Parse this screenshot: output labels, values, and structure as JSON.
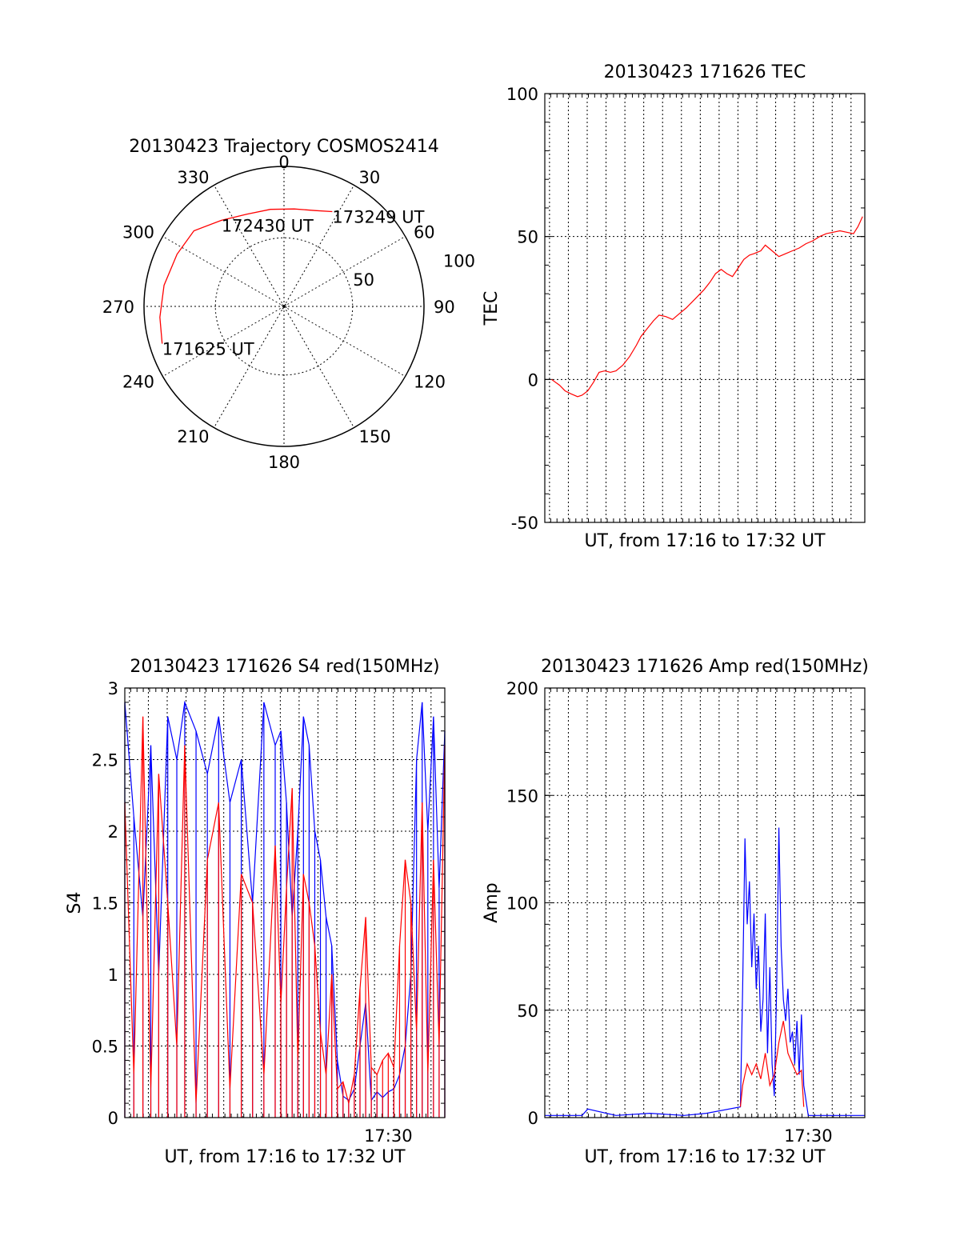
{
  "colors": {
    "red": "#ff0000",
    "blue": "#0000ff",
    "axis": "#000000",
    "background": "#ffffff"
  },
  "chart_data": [
    {
      "type": "polar",
      "title": "20130423 Trajectory COSMOS2414",
      "angle_labels": [
        "0",
        "30",
        "60",
        "90",
        "120",
        "150",
        "180",
        "210",
        "240",
        "270",
        "300",
        "330"
      ],
      "radius_labels": [
        "50",
        "100"
      ],
      "elevation_ticks": [
        50,
        100
      ],
      "series": [
        {
          "color": "red",
          "points": [
            {
              "azimuth": 253,
              "radius": 91,
              "label": "171625 UT"
            },
            {
              "azimuth": 265,
              "radius": 89
            },
            {
              "azimuth": 280,
              "radius": 87
            },
            {
              "azimuth": 296,
              "radius": 85
            },
            {
              "azimuth": 310,
              "radius": 84
            },
            {
              "azimuth": 324,
              "radius": 76,
              "label": "172430 UT"
            },
            {
              "azimuth": 338,
              "radius": 71
            },
            {
              "azimuth": 352,
              "radius": 70
            },
            {
              "azimuth": 6,
              "radius": 70
            },
            {
              "azimuth": 18,
              "radius": 72
            },
            {
              "azimuth": 27,
              "radius": 76,
              "label": "173249 UT"
            }
          ]
        }
      ]
    },
    {
      "type": "line",
      "title": "20130423 171626 TEC",
      "xlabel": "UT, from 17:16 to 17:32 UT",
      "ylabel": "TEC",
      "xlim": [
        17.267,
        17.55
      ],
      "ylim": [
        -50,
        100
      ],
      "yticks": [
        "-50",
        "0",
        "50",
        "100"
      ],
      "grid": true,
      "series": [
        {
          "color": "red",
          "x": [
            17.273,
            17.28,
            17.285,
            17.29,
            17.296,
            17.3,
            17.305,
            17.31,
            17.315,
            17.32,
            17.325,
            17.33,
            17.336,
            17.342,
            17.348,
            17.352,
            17.358,
            17.363,
            17.368,
            17.374,
            17.38,
            17.386,
            17.392,
            17.397,
            17.402,
            17.408,
            17.413,
            17.418,
            17.423,
            17.428,
            17.433,
            17.438,
            17.443,
            17.448,
            17.452,
            17.455,
            17.458,
            17.462,
            17.468,
            17.474,
            17.48,
            17.486,
            17.492,
            17.498,
            17.504,
            17.51,
            17.516,
            17.522,
            17.528,
            17.534,
            17.54,
            17.544,
            17.548
          ],
          "y": [
            0,
            -2,
            -4,
            -5,
            -6,
            -5.5,
            -4,
            -1,
            2.5,
            3,
            2.5,
            3,
            5,
            8,
            12,
            15,
            18,
            20.5,
            22.5,
            22,
            21,
            23,
            25,
            27,
            29,
            31.5,
            34,
            37,
            38.5,
            37,
            36,
            39,
            42,
            43.5,
            44,
            44.5,
            45,
            47,
            45,
            43,
            44,
            45,
            46,
            47.5,
            48.5,
            50,
            51,
            51.5,
            52,
            51.5,
            51,
            53.5,
            57
          ]
        }
      ]
    },
    {
      "type": "line",
      "title": "20130423 171626 S4 red(150MHz)",
      "xlabel": "UT, from 17:16 to 17:32 UT",
      "ylabel": "S4",
      "xlim": [
        17.267,
        17.55
      ],
      "ylim": [
        0,
        3
      ],
      "yticks": [
        "0",
        "0.5",
        "1",
        "1.5",
        "2",
        "2.5",
        "3"
      ],
      "xtick_labels": [
        {
          "x": 17.5,
          "label": "17:30"
        }
      ],
      "grid": true,
      "series": [
        {
          "color": "blue",
          "x": [
            17.267,
            17.275,
            17.283,
            17.29,
            17.297,
            17.305,
            17.313,
            17.32,
            17.33,
            17.34,
            17.35,
            17.36,
            17.37,
            17.38,
            17.39,
            17.4,
            17.405,
            17.41,
            17.415,
            17.42,
            17.425,
            17.43,
            17.435,
            17.44,
            17.445,
            17.45,
            17.455,
            17.46,
            17.465,
            17.47,
            17.475,
            17.48,
            17.485,
            17.49,
            17.495,
            17.5,
            17.505,
            17.51,
            17.515,
            17.52,
            17.525,
            17.53,
            17.535,
            17.54,
            17.545,
            17.55
          ],
          "y": [
            2.9,
            2.1,
            1.4,
            2.6,
            1.0,
            2.8,
            2.5,
            2.9,
            2.7,
            2.4,
            2.8,
            2.2,
            2.5,
            1.5,
            2.9,
            2.6,
            2.7,
            2.2,
            1.4,
            2.0,
            2.8,
            2.6,
            2.0,
            1.8,
            1.4,
            1.2,
            0.4,
            0.15,
            0.12,
            0.2,
            0.5,
            0.8,
            0.12,
            0.18,
            0.14,
            0.18,
            0.2,
            0.3,
            0.5,
            1.0,
            2.5,
            2.9,
            2.0,
            2.8,
            1.6,
            2.7
          ]
        },
        {
          "color": "red",
          "x": [
            17.267,
            17.275,
            17.283,
            17.29,
            17.297,
            17.305,
            17.313,
            17.32,
            17.33,
            17.34,
            17.35,
            17.36,
            17.37,
            17.38,
            17.39,
            17.4,
            17.405,
            17.41,
            17.415,
            17.42,
            17.425,
            17.43,
            17.435,
            17.44,
            17.445,
            17.45,
            17.455,
            17.46,
            17.465,
            17.47,
            17.475,
            17.48,
            17.485,
            17.49,
            17.495,
            17.5,
            17.505,
            17.51,
            17.515,
            17.52,
            17.525,
            17.53,
            17.535,
            17.54,
            17.545,
            17.55
          ],
          "y": [
            2.2,
            0.3,
            2.8,
            0.2,
            2.4,
            1.5,
            0.5,
            2.6,
            0.1,
            1.8,
            2.2,
            0.2,
            1.7,
            1.5,
            0.3,
            1.9,
            0.8,
            1.6,
            2.3,
            0.4,
            1.7,
            1.5,
            1.2,
            0.6,
            0.3,
            1.0,
            0.2,
            0.25,
            0.1,
            0.3,
            0.9,
            1.4,
            0.35,
            0.3,
            0.4,
            0.45,
            0.35,
            1.2,
            1.8,
            1.5,
            0.6,
            2.2,
            0.3,
            1.8,
            0.5,
            2.6
          ]
        }
      ]
    },
    {
      "type": "line",
      "title": "20130423 171626 Amp red(150MHz)",
      "xlabel": "UT, from 17:16 to 17:32 UT",
      "ylabel": "Amp",
      "xlim": [
        17.267,
        17.55
      ],
      "ylim": [
        0,
        200
      ],
      "yticks": [
        "0",
        "50",
        "100",
        "150",
        "200"
      ],
      "xtick_labels": [
        {
          "x": 17.5,
          "label": "17:30"
        }
      ],
      "grid": true,
      "series": [
        {
          "color": "blue",
          "x": [
            17.267,
            17.3,
            17.305,
            17.33,
            17.36,
            17.39,
            17.41,
            17.44,
            17.442,
            17.444,
            17.446,
            17.448,
            17.45,
            17.452,
            17.454,
            17.456,
            17.458,
            17.46,
            17.462,
            17.464,
            17.466,
            17.468,
            17.47,
            17.472,
            17.474,
            17.476,
            17.478,
            17.48,
            17.482,
            17.484,
            17.486,
            17.488,
            17.49,
            17.492,
            17.494,
            17.496,
            17.5,
            17.52,
            17.55
          ],
          "y": [
            1,
            1,
            4,
            1,
            2,
            1,
            2,
            5,
            60,
            130,
            90,
            110,
            70,
            95,
            60,
            80,
            40,
            55,
            95,
            30,
            70,
            25,
            10,
            60,
            135,
            80,
            55,
            45,
            60,
            35,
            40,
            25,
            45,
            20,
            48,
            15,
            1,
            1,
            1
          ]
        },
        {
          "color": "red",
          "x": [
            17.44,
            17.442,
            17.446,
            17.45,
            17.454,
            17.458,
            17.462,
            17.466,
            17.47,
            17.474,
            17.478,
            17.482,
            17.486,
            17.49,
            17.494,
            17.496
          ],
          "y": [
            5,
            15,
            25,
            20,
            25,
            18,
            30,
            15,
            20,
            35,
            45,
            30,
            25,
            20,
            22,
            5
          ]
        }
      ]
    }
  ]
}
